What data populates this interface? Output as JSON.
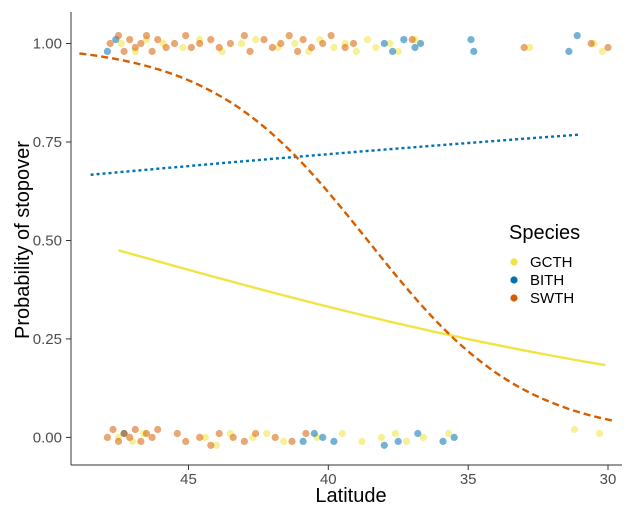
{
  "chart_data": {
    "type": "scatter",
    "title": "",
    "xlabel": "Latitude",
    "ylabel": "Probability of stopover",
    "x_reversed": true,
    "xlim": [
      49.2,
      29.5
    ],
    "ylim": [
      -0.07,
      1.08
    ],
    "x_ticks": [
      45,
      40,
      35,
      30
    ],
    "y_ticks": [
      0.0,
      0.25,
      0.5,
      0.75,
      1.0
    ],
    "x_tick_labels": [
      "45",
      "40",
      "35",
      "30"
    ],
    "y_tick_labels": [
      "0.00",
      "0.25",
      "0.50",
      "0.75",
      "1.00"
    ],
    "grid": false,
    "legend": {
      "title": "Species",
      "position": "right"
    },
    "series": [
      {
        "name": "GCTH",
        "color": "#f0e442",
        "line_style": "solid",
        "fit": {
          "intercept": -3.9,
          "slope": 0.08,
          "x_from": 47.5,
          "x_to": 30.1
        },
        "points": [
          [
            47.4,
            1.0
          ],
          [
            46.9,
            0.98
          ],
          [
            46.5,
            1.01
          ],
          [
            45.9,
            1.0
          ],
          [
            45.2,
            0.99
          ],
          [
            44.6,
            1.01
          ],
          [
            43.8,
            0.98
          ],
          [
            43.1,
            1.0
          ],
          [
            42.6,
            1.01
          ],
          [
            41.8,
            0.99
          ],
          [
            41.2,
            1.0
          ],
          [
            40.7,
            0.98
          ],
          [
            40.3,
            1.01
          ],
          [
            39.8,
            0.99
          ],
          [
            39.4,
            1.0
          ],
          [
            39.0,
            0.98
          ],
          [
            38.6,
            1.01
          ],
          [
            38.3,
            0.99
          ],
          [
            37.8,
            1.0
          ],
          [
            37.5,
            0.98
          ],
          [
            36.9,
            1.01
          ],
          [
            32.8,
            0.99
          ],
          [
            30.5,
            1.0
          ],
          [
            30.2,
            0.98
          ],
          [
            47.5,
            0.0
          ],
          [
            47.0,
            -0.01
          ],
          [
            46.6,
            0.01
          ],
          [
            44.4,
            0.0
          ],
          [
            44.0,
            -0.02
          ],
          [
            43.5,
            0.01
          ],
          [
            42.7,
            0.0
          ],
          [
            42.2,
            0.01
          ],
          [
            41.6,
            -0.01
          ],
          [
            40.4,
            0.0
          ],
          [
            39.5,
            0.01
          ],
          [
            38.8,
            -0.01
          ],
          [
            38.1,
            0.0
          ],
          [
            37.6,
            0.01
          ],
          [
            37.2,
            -0.01
          ],
          [
            36.6,
            0.0
          ],
          [
            35.7,
            0.01
          ],
          [
            31.2,
            0.02
          ],
          [
            30.3,
            0.01
          ]
        ]
      },
      {
        "name": "BITH",
        "color": "#0072b2",
        "line_style": "dotted",
        "fit": {
          "intercept": 2.1,
          "slope": -0.029,
          "x_from": 48.5,
          "x_to": 31.0
        },
        "points": [
          [
            47.9,
            0.98
          ],
          [
            47.6,
            1.01
          ],
          [
            38.0,
            1.0
          ],
          [
            37.7,
            0.98
          ],
          [
            37.3,
            1.01
          ],
          [
            36.9,
            0.99
          ],
          [
            36.7,
            1.0
          ],
          [
            34.9,
            1.01
          ],
          [
            34.8,
            0.98
          ],
          [
            31.1,
            1.02
          ],
          [
            31.4,
            0.98
          ],
          [
            47.3,
            0.01
          ],
          [
            40.9,
            -0.01
          ],
          [
            40.5,
            0.01
          ],
          [
            40.2,
            0.0
          ],
          [
            39.8,
            -0.01
          ],
          [
            38.0,
            -0.02
          ],
          [
            37.5,
            -0.01
          ],
          [
            36.8,
            0.01
          ],
          [
            35.9,
            -0.01
          ],
          [
            35.5,
            0.0
          ]
        ]
      },
      {
        "name": "SWTH",
        "color": "#d55e00",
        "line_style": "dashed",
        "fit": {
          "intercept": -13.7,
          "slope": 0.355,
          "x_from": 48.9,
          "x_to": 29.8
        },
        "points": [
          [
            47.8,
            1.0
          ],
          [
            47.5,
            1.02
          ],
          [
            47.3,
            0.98
          ],
          [
            47.1,
            1.01
          ],
          [
            46.9,
            0.99
          ],
          [
            46.7,
            1.0
          ],
          [
            46.5,
            1.02
          ],
          [
            46.3,
            0.98
          ],
          [
            46.1,
            1.01
          ],
          [
            45.8,
            0.99
          ],
          [
            45.5,
            1.0
          ],
          [
            45.1,
            1.02
          ],
          [
            44.9,
            0.99
          ],
          [
            44.6,
            1.0
          ],
          [
            44.2,
            1.01
          ],
          [
            43.9,
            0.99
          ],
          [
            43.5,
            1.0
          ],
          [
            43.0,
            1.02
          ],
          [
            42.8,
            0.98
          ],
          [
            42.3,
            1.01
          ],
          [
            42.0,
            0.99
          ],
          [
            41.7,
            1.0
          ],
          [
            41.4,
            1.02
          ],
          [
            41.1,
            0.98
          ],
          [
            40.9,
            1.01
          ],
          [
            40.6,
            0.99
          ],
          [
            40.2,
            1.0
          ],
          [
            39.9,
            1.02
          ],
          [
            39.4,
            0.99
          ],
          [
            39.1,
            1.0
          ],
          [
            37.0,
            1.01
          ],
          [
            33.0,
            0.99
          ],
          [
            30.6,
            1.0
          ],
          [
            30.0,
            0.99
          ],
          [
            47.9,
            0.0
          ],
          [
            47.7,
            0.02
          ],
          [
            47.5,
            -0.01
          ],
          [
            47.3,
            0.01
          ],
          [
            47.1,
            0.0
          ],
          [
            46.9,
            0.02
          ],
          [
            46.7,
            -0.01
          ],
          [
            46.5,
            0.01
          ],
          [
            46.3,
            0.0
          ],
          [
            46.1,
            0.02
          ],
          [
            45.4,
            0.01
          ],
          [
            45.1,
            -0.01
          ],
          [
            44.6,
            0.0
          ],
          [
            44.2,
            -0.02
          ],
          [
            43.9,
            0.01
          ],
          [
            43.4,
            0.0
          ],
          [
            43.0,
            -0.01
          ],
          [
            42.6,
            0.01
          ],
          [
            41.9,
            0.0
          ],
          [
            41.3,
            -0.01
          ],
          [
            40.8,
            0.01
          ]
        ]
      }
    ]
  }
}
